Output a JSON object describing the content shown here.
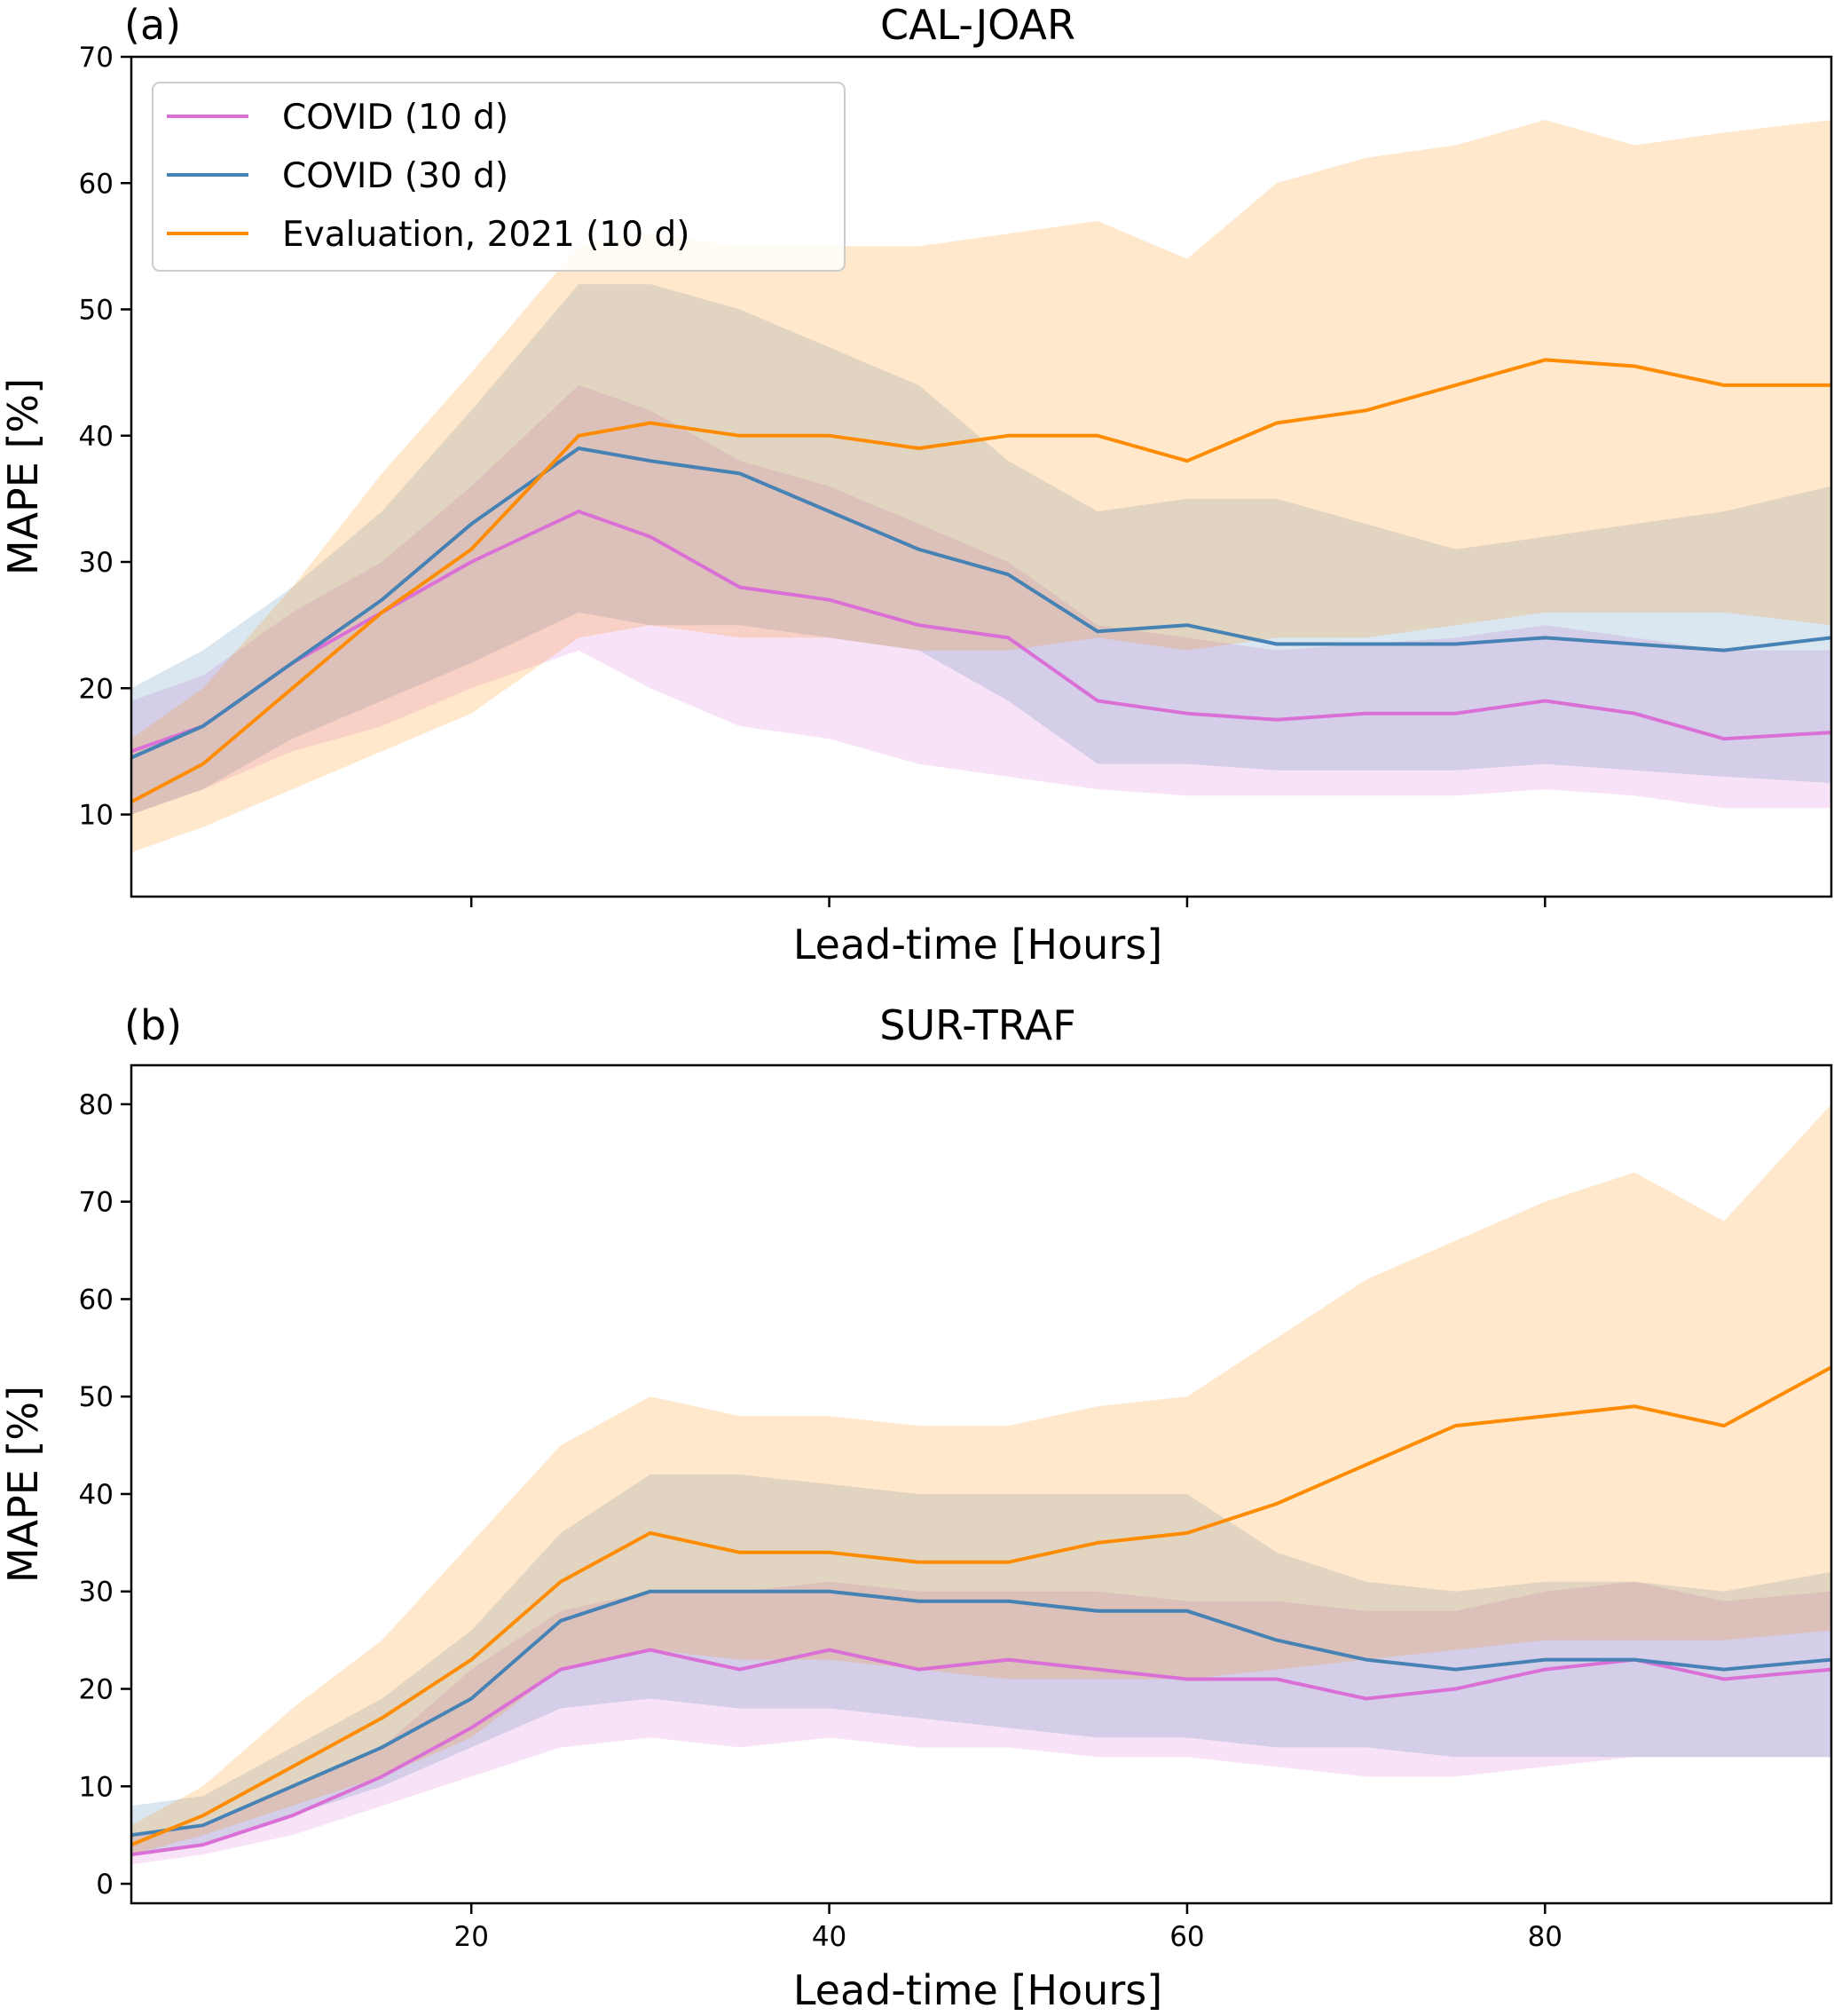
{
  "legend": {
    "placement": "top-left",
    "entries": [
      {
        "label": "COVID (10 d)",
        "color": "#DA70D6"
      },
      {
        "label": "COVID (30 d)",
        "color": "#4682B4"
      },
      {
        "label": "Evaluation, 2021 (10 d)",
        "color": "#FF8C00"
      }
    ]
  },
  "chart_data": [
    {
      "type": "line",
      "panel_letter": "(a)",
      "title": "CAL-JOAR",
      "xlabel": "Lead-time [Hours]",
      "ylabel": "MAPE [%]",
      "xlim": [
        1,
        96
      ],
      "ylim": [
        3.5,
        70
      ],
      "xticks": [
        20,
        40,
        60,
        80
      ],
      "xtick_labels_shown": false,
      "yticks": [
        10,
        20,
        30,
        40,
        50,
        60,
        70
      ],
      "grid": false,
      "x": [
        1,
        5,
        10,
        15,
        20,
        26,
        30,
        35,
        40,
        45,
        50,
        55,
        60,
        65,
        70,
        75,
        80,
        85,
        90,
        96
      ],
      "series": [
        {
          "name": "COVID (10 d)",
          "color": "#DA70D6",
          "mean": [
            15,
            17,
            22,
            26,
            30,
            34,
            32,
            28,
            27,
            25,
            24,
            19,
            18,
            17.5,
            18,
            18,
            19,
            18,
            16,
            16.5
          ],
          "lower": [
            10,
            12,
            15,
            17,
            20,
            23,
            20,
            17,
            16,
            14,
            13,
            12,
            11.5,
            11.5,
            11.5,
            11.5,
            12,
            11.5,
            10.5,
            10.5
          ],
          "upper": [
            19,
            21,
            26,
            30,
            36,
            44,
            42,
            38,
            36,
            33,
            30,
            25,
            24,
            23,
            23.5,
            24,
            25,
            24,
            23,
            23
          ]
        },
        {
          "name": "COVID (30 d)",
          "color": "#4682B4",
          "mean": [
            14.5,
            17,
            22,
            27,
            33,
            39,
            38,
            37,
            34,
            31,
            29,
            24.5,
            25,
            23.5,
            23.5,
            23.5,
            24,
            23.5,
            23,
            24
          ],
          "lower": [
            10,
            12,
            16,
            19,
            22,
            26,
            25,
            25,
            24,
            23,
            19,
            14,
            14,
            13.5,
            13.5,
            13.5,
            14,
            13.5,
            13,
            12.5
          ],
          "upper": [
            20,
            23,
            28,
            34,
            42,
            52,
            52,
            50,
            47,
            44,
            38,
            34,
            35,
            35,
            33,
            31,
            32,
            33,
            34,
            36
          ]
        },
        {
          "name": "Evaluation, 2021 (10 d)",
          "color": "#FF8C00",
          "mean": [
            11,
            14,
            20,
            26,
            31,
            40,
            41,
            40,
            40,
            39,
            40,
            40,
            38,
            41,
            42,
            44,
            46,
            45.5,
            44,
            44
          ],
          "lower": [
            7,
            9,
            12,
            15,
            18,
            24,
            25,
            24,
            24,
            23,
            23,
            24,
            23,
            24,
            24,
            25,
            26,
            26,
            26,
            25
          ],
          "upper": [
            16,
            20,
            28,
            37,
            45,
            55,
            56,
            55,
            55,
            55,
            56,
            57,
            54,
            60,
            62,
            63,
            65,
            63,
            64,
            65
          ]
        }
      ]
    },
    {
      "type": "line",
      "panel_letter": "(b)",
      "title": "SUR-TRAF",
      "xlabel": "Lead-time [Hours]",
      "ylabel": "MAPE [%]",
      "xlim": [
        1,
        96
      ],
      "ylim": [
        -2,
        84
      ],
      "xticks": [
        20,
        40,
        60,
        80
      ],
      "xtick_labels_shown": true,
      "yticks": [
        0,
        10,
        20,
        30,
        40,
        50,
        60,
        70,
        80
      ],
      "grid": false,
      "x": [
        1,
        5,
        10,
        15,
        20,
        25,
        30,
        35,
        40,
        45,
        50,
        55,
        60,
        65,
        70,
        75,
        80,
        85,
        90,
        96
      ],
      "series": [
        {
          "name": "COVID (10 d)",
          "color": "#DA70D6",
          "mean": [
            3,
            4,
            7,
            11,
            16,
            22,
            24,
            22,
            24,
            22,
            23,
            22,
            21,
            21,
            19,
            20,
            22,
            23,
            21,
            22
          ],
          "lower": [
            2,
            3,
            5,
            8,
            11,
            14,
            15,
            14,
            15,
            14,
            14,
            13,
            13,
            12,
            11,
            11,
            12,
            13,
            13,
            13
          ],
          "upper": [
            5,
            6,
            10,
            14,
            22,
            28,
            30,
            30,
            31,
            30,
            30,
            30,
            29,
            29,
            28,
            28,
            30,
            31,
            29,
            30
          ]
        },
        {
          "name": "COVID (30 d)",
          "color": "#4682B4",
          "mean": [
            5,
            6,
            10,
            14,
            19,
            27,
            30,
            30,
            30,
            29,
            29,
            28,
            28,
            25,
            23,
            22,
            23,
            23,
            22,
            23
          ],
          "lower": [
            3,
            4,
            7,
            10,
            14,
            18,
            19,
            18,
            18,
            17,
            16,
            15,
            15,
            14,
            14,
            13,
            13,
            13,
            13,
            13
          ],
          "upper": [
            8,
            9,
            14,
            19,
            26,
            36,
            42,
            42,
            41,
            40,
            40,
            40,
            40,
            34,
            31,
            30,
            31,
            31,
            30,
            32
          ]
        },
        {
          "name": "Evaluation, 2021 (10 d)",
          "color": "#FF8C00",
          "mean": [
            4,
            7,
            12,
            17,
            23,
            31,
            36,
            34,
            34,
            33,
            33,
            35,
            36,
            39,
            43,
            47,
            48,
            49,
            47,
            53
          ]
        },
        {
          "name": "",
          "color": "#FF8C00",
          "band_only": true,
          "lower": [
            3,
            5,
            8,
            11,
            15,
            22,
            24,
            23,
            23,
            22,
            21,
            21,
            21,
            22,
            23,
            24,
            25,
            25,
            25,
            26
          ],
          "upper": [
            6,
            10,
            18,
            25,
            35,
            45,
            50,
            48,
            48,
            47,
            47,
            49,
            50,
            56,
            62,
            66,
            70,
            73,
            68,
            80
          ]
        }
      ]
    }
  ]
}
